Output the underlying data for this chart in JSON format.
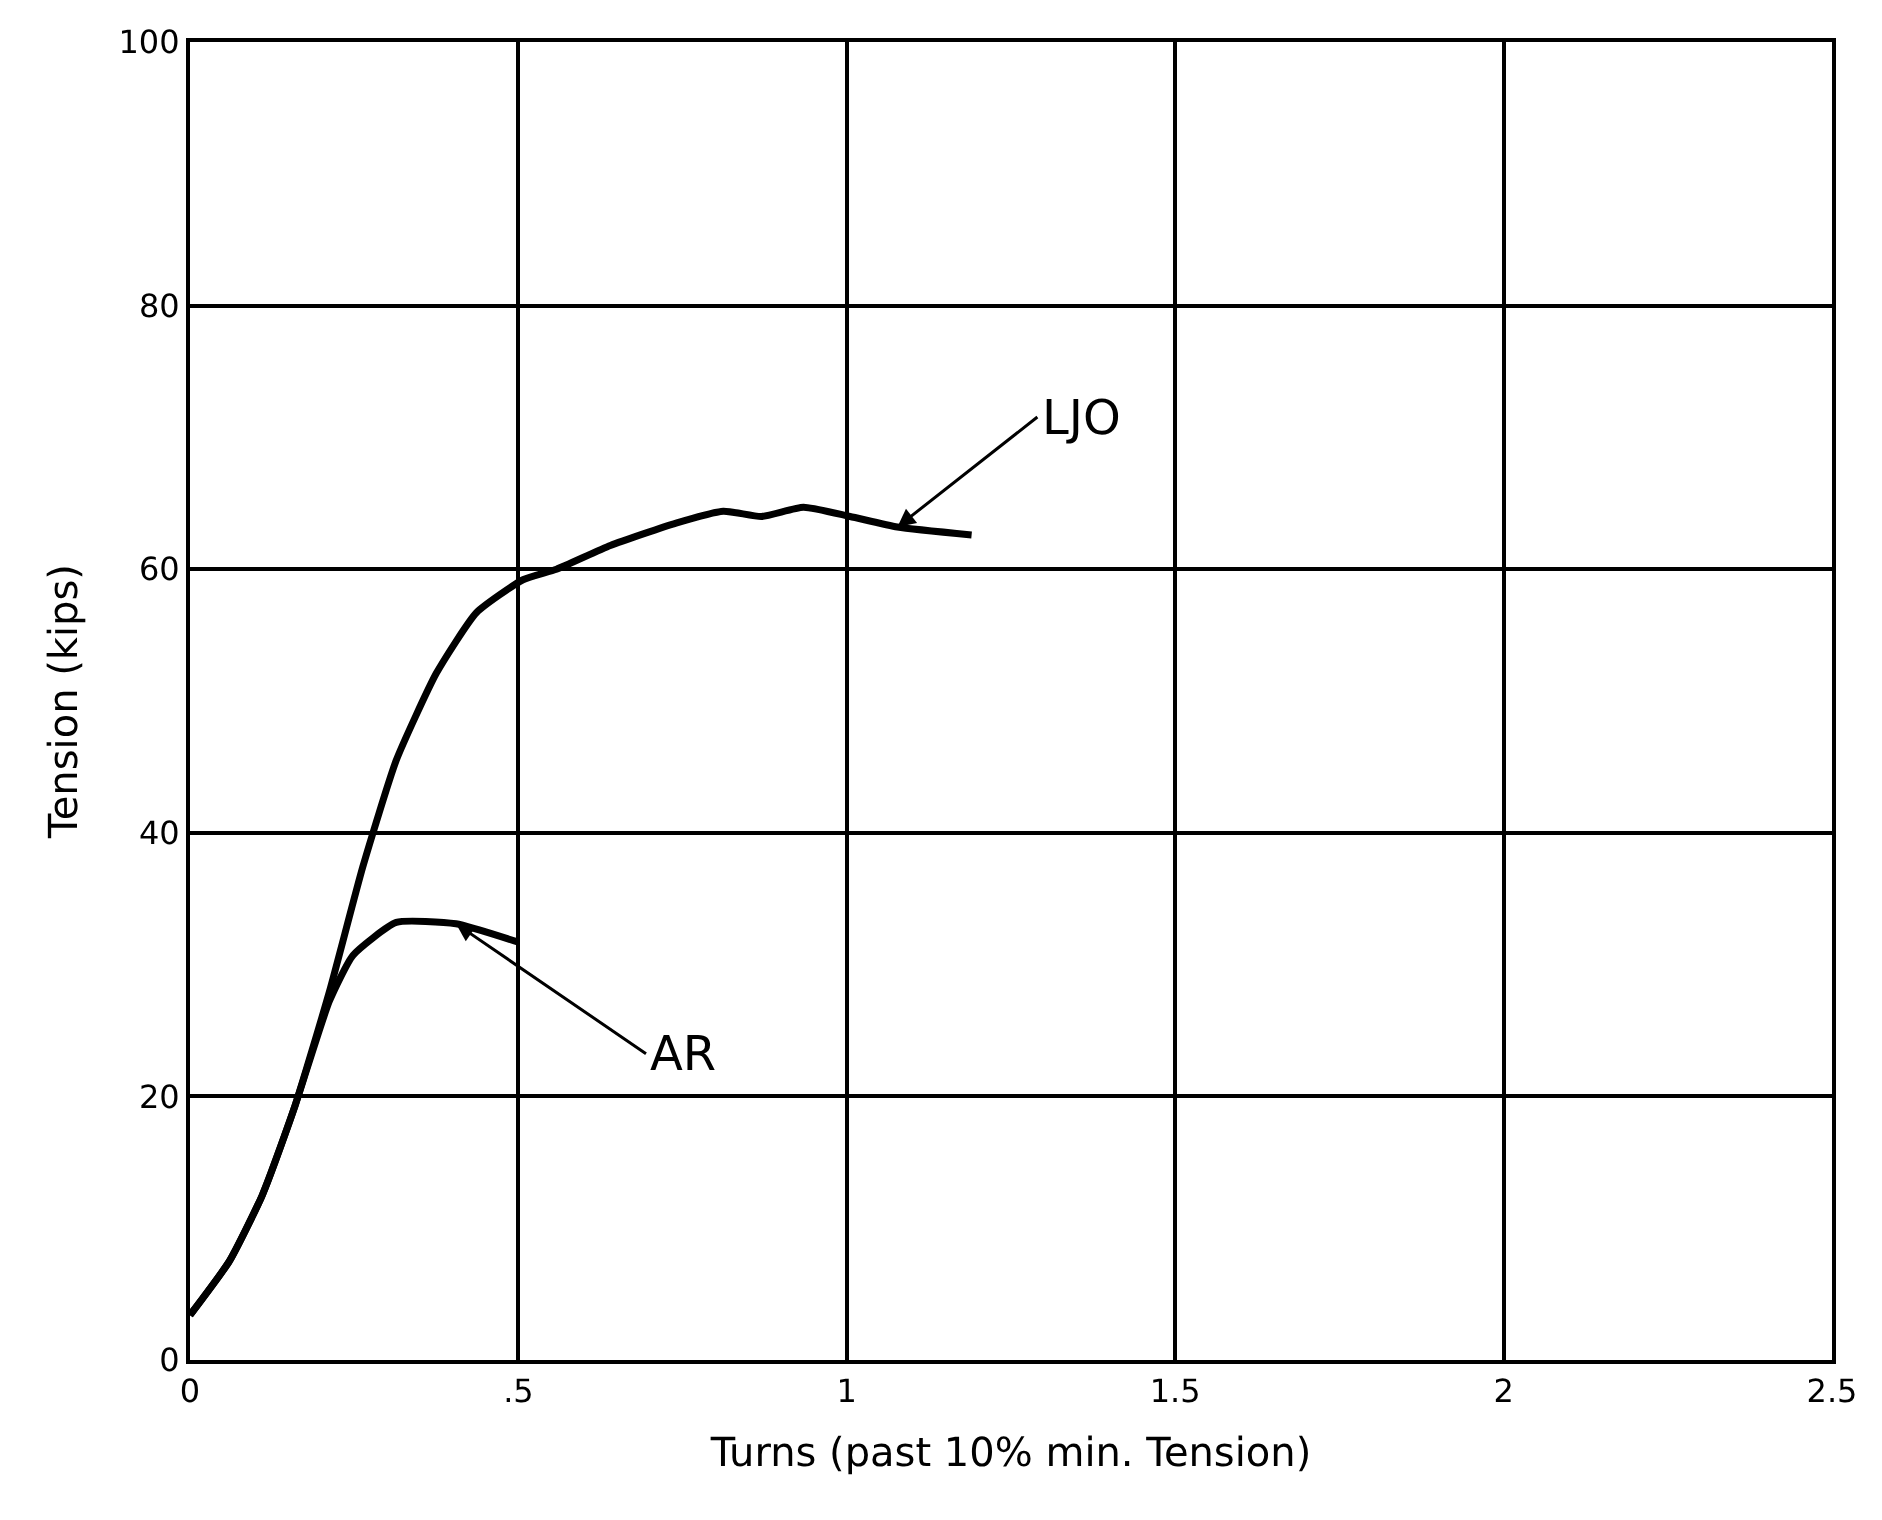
{
  "chart_data": {
    "type": "line",
    "xlabel": "Turns (past 10% min. Tension)",
    "ylabel": "Tension (kips)",
    "xlim": [
      0,
      2.5
    ],
    "ylim": [
      0,
      100
    ],
    "xticks": [
      0,
      {
        "value": 0.5,
        "label": ".5"
      },
      1,
      1.5,
      2,
      2.5
    ],
    "yticks": [
      0,
      20,
      40,
      60,
      80,
      100
    ],
    "grid": true,
    "marker": "none",
    "line_style": "solid",
    "series": [
      {
        "color": "#000000",
        "x": [
          0.0,
          0.06,
          0.11,
          0.16,
          0.212,
          0.263,
          0.314,
          0.375,
          0.436,
          0.507,
          0.558,
          0.64,
          0.74,
          0.812,
          0.87,
          0.934,
          1.005,
          1.077,
          1.19
        ],
        "values": [
          3.4,
          7.5,
          12.5,
          19.3,
          27.9,
          37.4,
          45.5,
          52.1,
          56.7,
          59.2,
          60.0,
          61.8,
          63.5,
          64.4,
          64.0,
          64.7,
          64.0,
          63.2,
          62.6
        ]
      },
      {
        "color": "#000000",
        "x": [
          0.0,
          0.06,
          0.11,
          0.16,
          0.212,
          0.248,
          0.314,
          0.405,
          0.5
        ],
        "values": [
          3.4,
          7.5,
          12.5,
          19.3,
          27.2,
          30.7,
          33.2,
          33.1,
          31.7
        ]
      }
    ],
    "annotations": [
      {
        "text": "LJO",
        "x": 1.077,
        "y": 63.2
      },
      {
        "text": "AR",
        "x": 0.405,
        "y": 33.1
      }
    ]
  }
}
